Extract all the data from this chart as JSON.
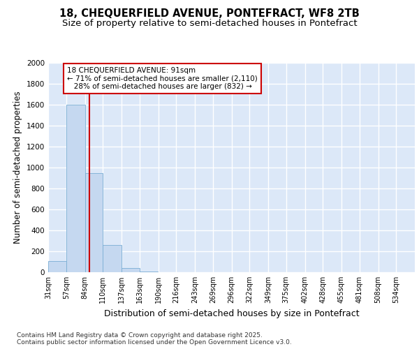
{
  "title1": "18, CHEQUERFIELD AVENUE, PONTEFRACT, WF8 2TB",
  "title2": "Size of property relative to semi-detached houses in Pontefract",
  "xlabel": "Distribution of semi-detached houses by size in Pontefract",
  "ylabel": "Number of semi-detached properties",
  "bin_edges": [
    31,
    57,
    84,
    110,
    137,
    163,
    190,
    216,
    243,
    269,
    296,
    322,
    349,
    375,
    402,
    428,
    455,
    481,
    508,
    534,
    561
  ],
  "bar_heights": [
    110,
    1600,
    950,
    260,
    40,
    5,
    0,
    0,
    0,
    0,
    0,
    0,
    0,
    0,
    0,
    0,
    0,
    0,
    0,
    0
  ],
  "bar_color": "#c5d8f0",
  "bar_edge_color": "#7aadd4",
  "subject_size": 91,
  "red_line_color": "#cc0000",
  "annotation_text": "18 CHEQUERFIELD AVENUE: 91sqm\n← 71% of semi-detached houses are smaller (2,110)\n   28% of semi-detached houses are larger (832) →",
  "annotation_box_color": "#cc0000",
  "footer_text": "Contains HM Land Registry data © Crown copyright and database right 2025.\nContains public sector information licensed under the Open Government Licence v3.0.",
  "bg_color": "#dce8f8",
  "grid_color": "#ffffff",
  "ylim": [
    0,
    2000
  ],
  "title1_fontsize": 10.5,
  "title2_fontsize": 9.5,
  "tick_fontsize": 7,
  "ylabel_fontsize": 8.5,
  "xlabel_fontsize": 9,
  "footer_fontsize": 6.5
}
